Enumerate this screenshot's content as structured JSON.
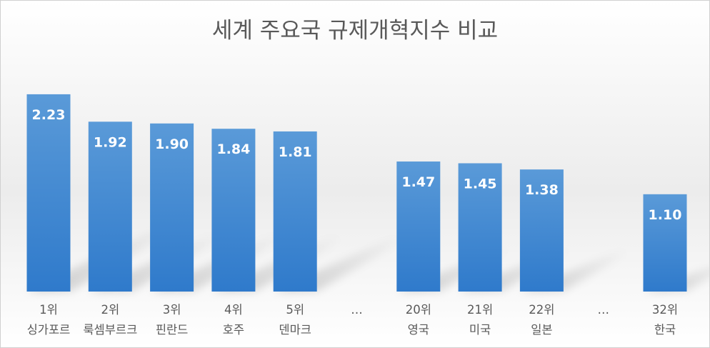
{
  "chart_data": {
    "type": "bar",
    "title": "세계 주요국 규제개혁지수 비교",
    "xlabel": "",
    "ylabel": "",
    "ylim": [
      0,
      2.5
    ],
    "grid": false,
    "legend": "none",
    "bar_color": "#3f86cf",
    "categories": [
      {
        "rank": "1위",
        "name": "싱가포르"
      },
      {
        "rank": "2위",
        "name": "룩셈부르크"
      },
      {
        "rank": "3위",
        "name": "핀란드"
      },
      {
        "rank": "4위",
        "name": "호주"
      },
      {
        "rank": "5위",
        "name": "덴마크"
      },
      {
        "rank": "…",
        "name": ""
      },
      {
        "rank": "20위",
        "name": "영국"
      },
      {
        "rank": "21위",
        "name": "미국"
      },
      {
        "rank": "22위",
        "name": "일본"
      },
      {
        "rank": "…",
        "name": ""
      },
      {
        "rank": "32위",
        "name": "한국"
      }
    ],
    "values": [
      2.23,
      1.92,
      1.9,
      1.84,
      1.81,
      null,
      1.47,
      1.45,
      1.38,
      null,
      1.1
    ],
    "labels": [
      "2.23",
      "1.92",
      "1.90",
      "1.84",
      "1.81",
      "",
      "1.47",
      "1.45",
      "1.38",
      "",
      "1.10"
    ]
  }
}
